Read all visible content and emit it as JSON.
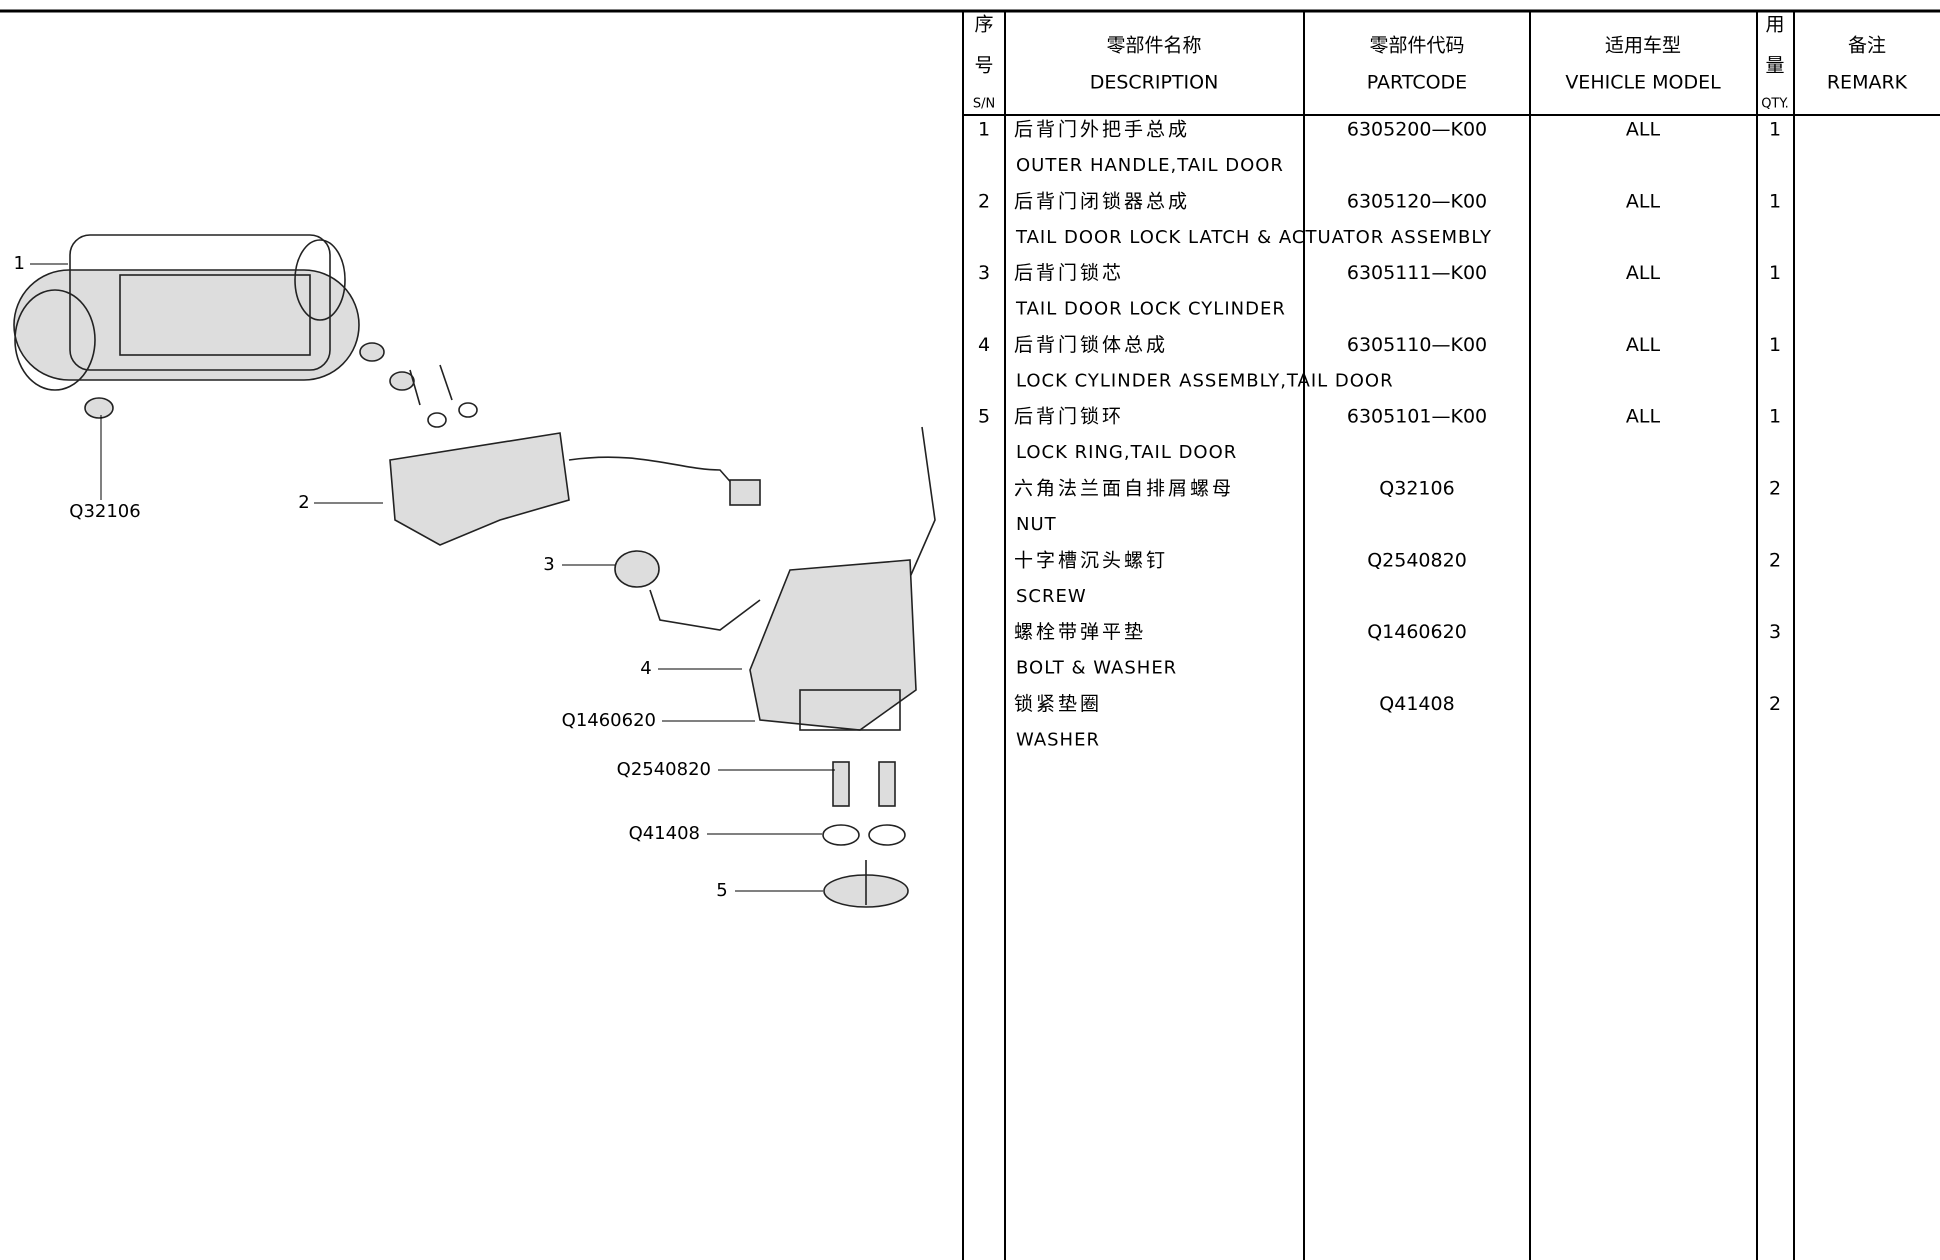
{
  "header": {
    "sn": [
      "序",
      "号",
      "S/N"
    ],
    "description": [
      "零部件名称",
      "DESCRIPTION"
    ],
    "partcode": [
      "零部件代码",
      "PARTCODE"
    ],
    "model": [
      "适用车型",
      "VEHICLE MODEL"
    ],
    "qty": [
      "用",
      "量",
      "QTY."
    ],
    "remark": [
      "备注",
      "REMARK"
    ]
  },
  "rows": [
    {
      "sn": "1",
      "name_cn": "后背门外把手总成",
      "name_en": "OUTER HANDLE,TAIL DOOR",
      "partcode": "6305200—K00",
      "model": "ALL",
      "qty": 1
    },
    {
      "sn": "2",
      "name_cn": "后背门闭锁器总成",
      "name_en": "TAIL DOOR LOCK LATCH & ACTUATOR ASSEMBLY",
      "partcode": "6305120—K00",
      "model": "ALL",
      "qty": 1
    },
    {
      "sn": "3",
      "name_cn": "后背门锁芯",
      "name_en": "TAIL DOOR LOCK CYLINDER",
      "partcode": "6305111—K00",
      "model": "ALL",
      "qty": 1
    },
    {
      "sn": "4",
      "name_cn": "后背门锁体总成",
      "name_en": "LOCK CYLINDER ASSEMBLY,TAIL DOOR",
      "partcode": "6305110—K00",
      "model": "ALL",
      "qty": 1
    },
    {
      "sn": "5",
      "name_cn": "后背门锁环",
      "name_en": "LOCK RING,TAIL DOOR",
      "partcode": "6305101—K00",
      "model": "ALL",
      "qty": 1
    },
    {
      "name_cn": "六角法兰面自排屑螺母",
      "name_en": "NUT",
      "partcode": "Q32106",
      "qty": 2
    },
    {
      "name_cn": "十字槽沉头螺钉",
      "name_en": "SCREW",
      "partcode": "Q2540820",
      "qty": 2
    },
    {
      "name_cn": "螺栓带弹平垫",
      "name_en": "BOLT & WASHER",
      "partcode": "Q1460620",
      "qty": 3
    },
    {
      "name_cn": "锁紧垫圈",
      "name_en": "WASHER",
      "partcode": "Q41408",
      "qty": 2
    }
  ],
  "diagram": {
    "callouts": [
      "1",
      "Q32106",
      "2",
      "3",
      "4",
      "Q1460620",
      "Q2540820",
      "Q41408",
      "5"
    ]
  }
}
